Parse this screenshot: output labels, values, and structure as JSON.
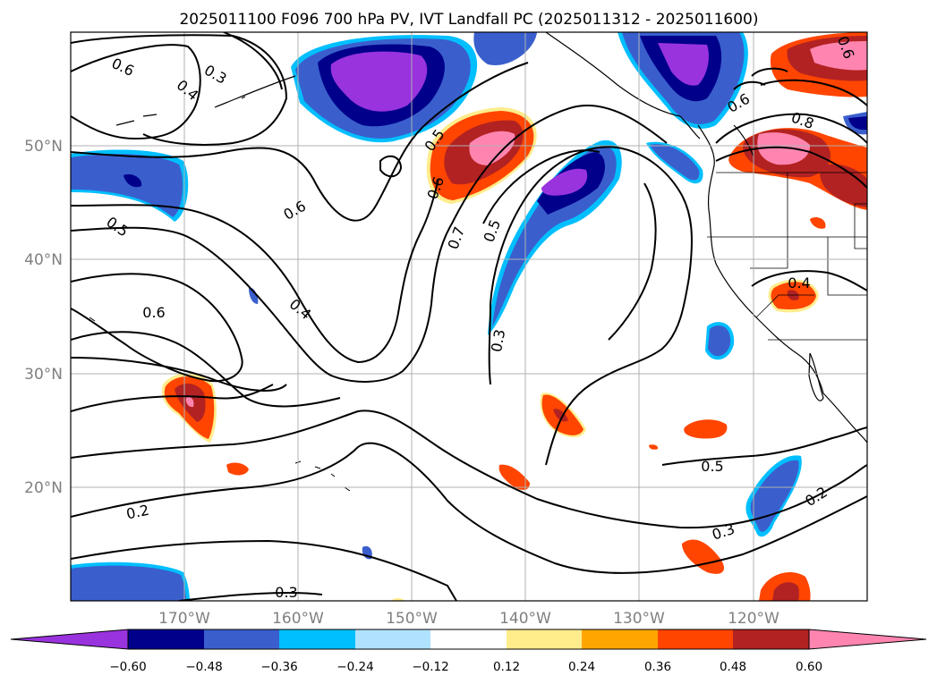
{
  "title": "2025011100 F096 700 hPa PV, IVT Landfall PC (2025011312 - 2025011600)",
  "lat_labels": [
    "50°N",
    "40°N",
    "30°N",
    "20°N"
  ],
  "lon_labels": [
    "170°W",
    "160°W",
    "150°W",
    "140°W",
    "130°W",
    "120°W"
  ],
  "colorbar": {
    "ticks": [
      "−0.60",
      "−0.48",
      "−0.36",
      "−0.24",
      "−0.12",
      "0.12",
      "0.24",
      "0.36",
      "0.48",
      "0.60"
    ],
    "colors": [
      "#9933dd",
      "#00008b",
      "#3a5fcd",
      "#00bfff",
      "#b0e2ff",
      "#ffffff",
      "#ffec8b",
      "#ffa500",
      "#ff4500",
      "#b22222",
      "#ff85b0"
    ]
  },
  "contour_labels": [
    "0.6",
    "0.3",
    "0.4",
    "0.5",
    "0.6",
    "0.6",
    "0.4",
    "0.5",
    "0.6",
    "0.7",
    "0.5",
    "0.3",
    "0.6",
    "0.8",
    "0.6",
    "0.4",
    "0.5",
    "0.2",
    "0.3",
    "0.3",
    "0.2"
  ]
}
